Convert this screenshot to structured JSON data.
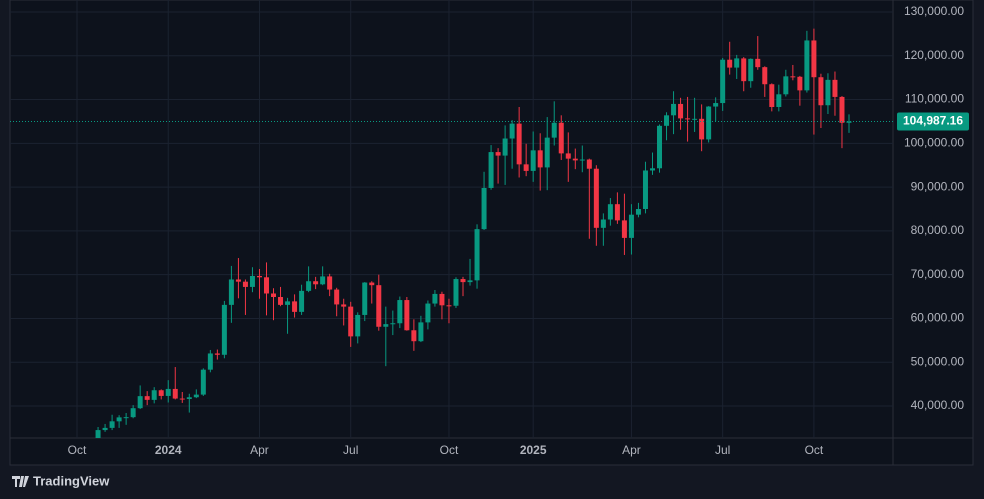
{
  "chart_data": {
    "type": "candlestick",
    "categories": [
      "Oct",
      null,
      null,
      null,
      null,
      null,
      null,
      null,
      null,
      null,
      null,
      null,
      null,
      "2024",
      null,
      null,
      null,
      null,
      null,
      null,
      null,
      null,
      null,
      null,
      null,
      null,
      "Apr",
      null,
      null,
      null,
      null,
      null,
      null,
      null,
      null,
      null,
      null,
      null,
      null,
      "Jul",
      null,
      null,
      null,
      null,
      null,
      null,
      null,
      null,
      null,
      null,
      null,
      null,
      null,
      "Oct",
      null,
      null,
      null,
      null,
      null,
      null,
      null,
      null,
      null,
      null,
      null,
      "2025",
      null,
      null,
      null,
      null,
      null,
      null,
      null,
      null,
      null,
      null,
      null,
      null,
      null,
      "Apr",
      null,
      null,
      null,
      null,
      null,
      null,
      null,
      null,
      null,
      null,
      null,
      null,
      "Jul",
      null,
      null,
      null,
      null,
      null,
      null,
      null,
      null,
      null,
      null,
      null,
      null,
      "Oct",
      null,
      null,
      null,
      null,
      null
    ],
    "open": [
      null,
      null,
      null,
      30000,
      34500,
      35000,
      36500,
      37400,
      37450,
      39500,
      42250,
      41400,
      43600,
      42300,
      43900,
      41700,
      41600,
      42000,
      42600,
      48300,
      52000,
      51700,
      63100,
      68900,
      68400,
      67200,
      69700,
      69400,
      65700,
      64900,
      63100,
      63900,
      61500,
      66300,
      68500,
      67800,
      69600,
      66600,
      63200,
      62700,
      55900,
      60800,
      68200,
      67600,
      58100,
      58700,
      58900,
      64200,
      57300,
      54800,
      59100,
      63400,
      65600,
      63000,
      62900,
      69000,
      68300,
      68700,
      80400,
      89800,
      98000,
      97200,
      101100,
      104500,
      95200,
      93700,
      98400,
      94500,
      101300,
      104700,
      97700,
      96500,
      96100,
      96300,
      94200,
      80700,
      82600,
      86100,
      82400,
      78400,
      83700,
      85000,
      93800,
      94300,
      104000,
      106400,
      109000,
      105700,
      105500,
      105600,
      100900,
      108400,
      109200,
      119100,
      117300,
      119400,
      114200,
      119300,
      117400,
      113500,
      108300,
      111200,
      115300,
      115200,
      112100,
      123500,
      115100,
      108700,
      114500,
      110600,
      104700
    ],
    "high": [
      null,
      null,
      null,
      35200,
      35900,
      38000,
      37900,
      38400,
      40200,
      44700,
      43400,
      44300,
      43800,
      45900,
      48900,
      43200,
      42800,
      43800,
      48600,
      52800,
      52900,
      64000,
      72000,
      73800,
      68900,
      71700,
      71300,
      72800,
      66900,
      67200,
      64700,
      65500,
      67700,
      71900,
      69500,
      71900,
      70200,
      67000,
      64500,
      63800,
      61400,
      68300,
      68500,
      70000,
      62700,
      61800,
      65000,
      64900,
      59800,
      60600,
      64100,
      66500,
      66100,
      64500,
      69400,
      69500,
      73600,
      81500,
      93500,
      99600,
      98900,
      104100,
      105300,
      108300,
      99900,
      102700,
      102300,
      106000,
      109600,
      106400,
      102500,
      98800,
      99500,
      96500,
      95000,
      84000,
      87500,
      88800,
      88500,
      86100,
      86400,
      95800,
      97900,
      104300,
      107100,
      111900,
      110400,
      110600,
      110400,
      108900,
      108500,
      110500,
      119500,
      123200,
      120200,
      119700,
      119400,
      124500,
      117600,
      113700,
      113400,
      116800,
      117900,
      115400,
      125700,
      126200,
      115900,
      116000,
      116400,
      110800,
      106600
    ],
    "low": [
      null,
      null,
      null,
      29900,
      34100,
      34500,
      35000,
      35700,
      37200,
      39300,
      40200,
      40600,
      41500,
      40800,
      41500,
      40700,
      38500,
      41800,
      42300,
      47700,
      50600,
      50900,
      59000,
      64600,
      60800,
      66000,
      64500,
      60700,
      59600,
      62800,
      56500,
      60200,
      60800,
      66000,
      66700,
      67600,
      65100,
      60500,
      58400,
      53500,
      54300,
      59400,
      63400,
      57200,
      49100,
      56200,
      57800,
      57200,
      52600,
      54600,
      57500,
      62700,
      59800,
      58900,
      62400,
      65100,
      67500,
      66800,
      80200,
      89400,
      90800,
      90500,
      94200,
      92200,
      92500,
      91200,
      89200,
      89300,
      99500,
      96200,
      91200,
      94100,
      93400,
      78200,
      76600,
      76600,
      81200,
      81600,
      74500,
      74600,
      83100,
      84000,
      92800,
      93300,
      100700,
      102100,
      103100,
      100400,
      102600,
      98200,
      100200,
      105100,
      107400,
      115700,
      114700,
      111900,
      112700,
      116800,
      110600,
      107300,
      107300,
      110700,
      114400,
      108600,
      111600,
      102000,
      103500,
      106700,
      106300,
      98900,
      102400
    ],
    "close": [
      null,
      null,
      null,
      34500,
      35000,
      36500,
      37400,
      37450,
      39500,
      42250,
      41400,
      43600,
      42300,
      43900,
      41700,
      41600,
      42000,
      42600,
      48300,
      52000,
      51700,
      63100,
      68900,
      68400,
      67200,
      69700,
      69400,
      65700,
      64900,
      63100,
      63900,
      61500,
      66300,
      68500,
      67800,
      69600,
      66600,
      63200,
      62700,
      55900,
      60800,
      68200,
      67600,
      58100,
      58700,
      58900,
      64200,
      57300,
      54800,
      59100,
      63400,
      65600,
      63000,
      62900,
      69000,
      68300,
      68700,
      80400,
      89800,
      98000,
      97200,
      101100,
      104500,
      95200,
      93700,
      98400,
      94500,
      101300,
      104700,
      97700,
      96500,
      96100,
      96300,
      94200,
      80700,
      82600,
      86100,
      82400,
      78400,
      83700,
      85000,
      93800,
      94300,
      104000,
      106400,
      109000,
      105700,
      105500,
      105600,
      100900,
      108400,
      109200,
      119100,
      117300,
      119400,
      114200,
      119300,
      117400,
      113500,
      108300,
      111200,
      115300,
      115200,
      112100,
      123500,
      115100,
      108700,
      114500,
      110600,
      104700,
      104987.16
    ],
    "up_color": "#089981",
    "down_color": "#f23645",
    "ylim": [
      32690,
      132740
    ],
    "yticks": [
      {
        "value": 40000,
        "label": "40,000.00"
      },
      {
        "value": 50000,
        "label": "50,000.00"
      },
      {
        "value": 60000,
        "label": "60,000.00"
      },
      {
        "value": 70000,
        "label": "70,000.00"
      },
      {
        "value": 80000,
        "label": "80,000.00"
      },
      {
        "value": 90000,
        "label": "90,000.00"
      },
      {
        "value": 100000,
        "label": "100,000.00"
      },
      {
        "value": 110000,
        "label": "110,000.00"
      },
      {
        "value": 120000,
        "label": "120,000.00"
      },
      {
        "value": 130000,
        "label": "130,000.00"
      }
    ],
    "last_price": {
      "value": 104987.16,
      "label": "104,987.16"
    },
    "grid": true
  },
  "branding": "TradingView"
}
